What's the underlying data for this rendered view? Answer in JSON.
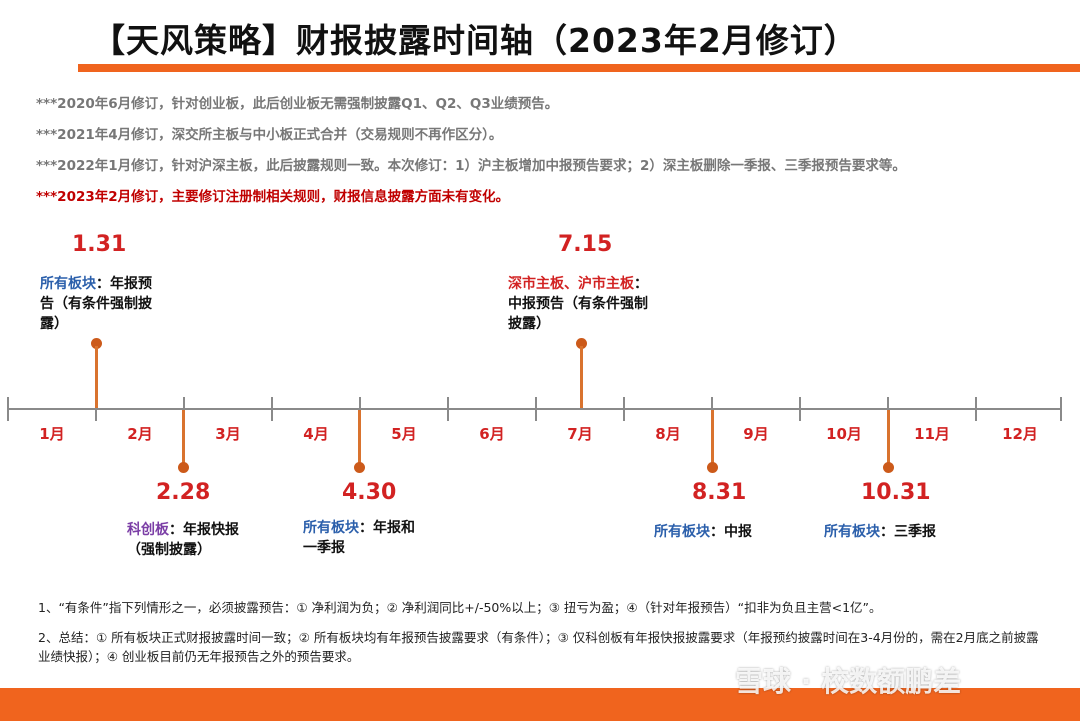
{
  "title": "【天风策略】财报披露时间轴（2023年2月修订）",
  "notes": [
    "***2020年6月修订，针对创业板，此后创业板无需强制披露Q1、Q2、Q3业绩预告。",
    "***2021年4月修订，深交所主板与中小板正式合并（交易规则不再作区分）。",
    "***2022年1月修订，针对沪深主板，此后披露规则一致。本次修订：1）沪主板增加中报预告要求；2）深主板删除一季报、三季报预告要求等。",
    "***2023年2月修订，主要修订注册制相关规则，财报信息披露方面未有变化。"
  ],
  "months": [
    "1月",
    "2月",
    "3月",
    "4月",
    "5月",
    "6月",
    "7月",
    "8月",
    "9月",
    "10月",
    "11月",
    "12月"
  ],
  "events": [
    {
      "date": "1.31",
      "board": "所有板块",
      "text": "：年报预告（有条件强制披露）"
    },
    {
      "date": "2.28",
      "board": "科创板",
      "text": "：年报快报（强制披露）"
    },
    {
      "date": "4.30",
      "board": "所有板块",
      "text": "：年报和一季报"
    },
    {
      "date": "7.15",
      "board": "深市主板、沪市主板",
      "text": "：中报预告（有条件强制披露）"
    },
    {
      "date": "8.31",
      "board": "所有板块",
      "text": "：中报"
    },
    {
      "date": "10.31",
      "board": "所有板块",
      "text": "：三季报"
    }
  ],
  "footnotes": [
    "1、“有条件”指下列情形之一，必须披露预告：① 净利润为负；② 净利润同比+/-50%以上；③ 扭亏为盈；④（针对年报预告）“扣非为负且主营<1亿”。",
    "2、总结：① 所有板块正式财报披露时间一致；② 所有板块均有年报预告披露要求（有条件）；③ 仅科创板有年报快报披露要求（年报预约披露时间在3-4月份的，需在2月底之前披露业绩快报）；④ 创业板目前仍无年报预告之外的预告要求。"
  ],
  "watermark": "雪球 · 校数额鹏差",
  "colors": {
    "accent": "#f0641e",
    "red": "#d22222",
    "blue": "#2b5fab",
    "purple": "#7b3ea6",
    "stem": "#d9732e"
  }
}
